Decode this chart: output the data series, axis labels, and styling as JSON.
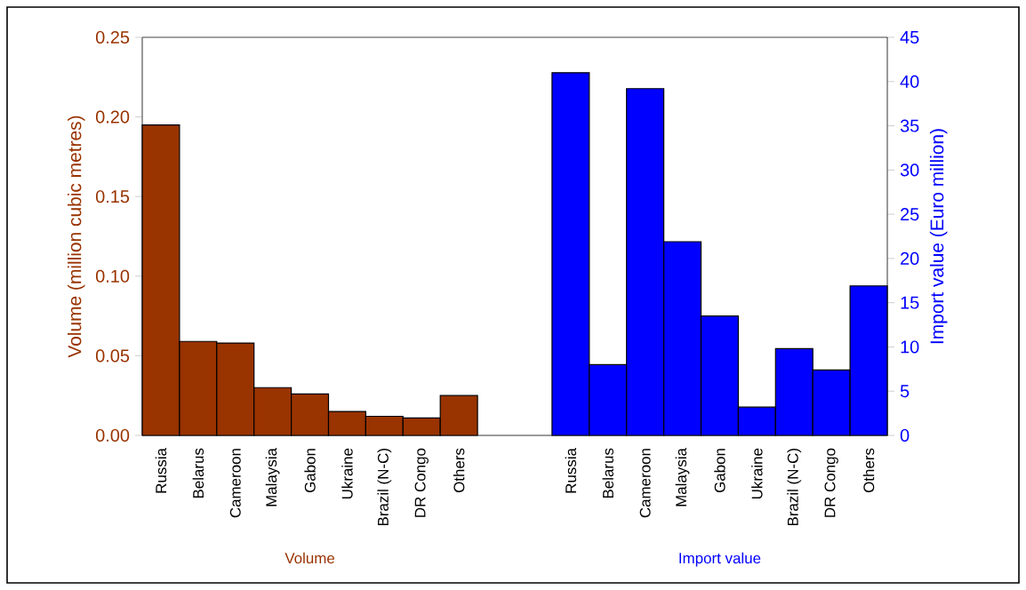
{
  "chart_data": {
    "type": "bar",
    "ylabel": "Volume (million cubic metres)",
    "y2label": "Import value (Euro million)",
    "categories": [
      "Russia",
      "Belarus",
      "Cameroon",
      "Malaysia",
      "Gabon",
      "Ukraine",
      "Brazil (N-C)",
      "DR Congo",
      "Others",
      null,
      null,
      "Russia",
      "Belarus",
      "Cameroon",
      "Malaysia",
      "Gabon",
      "Ukraine",
      "Brazil (N-C)",
      "DR Congo",
      "Others"
    ],
    "series": [
      {
        "color": "#993300",
        "values": [
          0.195,
          0.059,
          0.058,
          0.03,
          0.026,
          0.015,
          0.012,
          0.011,
          0.025,
          null,
          null,
          null,
          null,
          null,
          null,
          null,
          null,
          null,
          null,
          null
        ]
      },
      {
        "color": "#0000ff",
        "axis": "y2",
        "values": [
          null,
          null,
          null,
          null,
          null,
          null,
          null,
          null,
          null,
          null,
          null,
          41.0,
          8.0,
          39.2,
          21.9,
          13.5,
          3.2,
          9.8,
          7.4,
          16.9
        ]
      }
    ],
    "ylim": [
      0,
      0.25
    ],
    "yticks": [
      {
        "value": 0,
        "label": "0.00"
      },
      {
        "value": 0.05,
        "label": "0.05"
      },
      {
        "value": 0.1,
        "label": "0.10"
      },
      {
        "value": 0.15,
        "label": "0.15"
      },
      {
        "value": 0.2,
        "label": "0.20"
      },
      {
        "value": 0.25,
        "label": "0.25"
      }
    ],
    "y2lim": [
      0,
      45
    ],
    "y2ticks": [
      0,
      5,
      10,
      15,
      20,
      25,
      30,
      35,
      40,
      45
    ],
    "annotations": [
      "Volume",
      "Import value"
    ],
    "grid": false
  }
}
